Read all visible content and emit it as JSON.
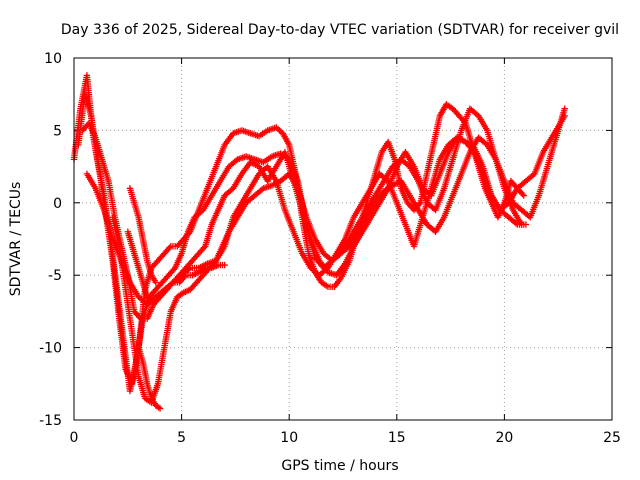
{
  "chart_data": {
    "type": "scatter",
    "title": "Day 336 of 2025, Sidereal Day-to-day VTEC variation (SDTVAR) for receiver gvil",
    "xlabel": "GPS time / hours",
    "ylabel": "SDTVAR / TECUs",
    "xlim": [
      0,
      25
    ],
    "ylim": [
      -15,
      10
    ],
    "xticks": [
      0,
      5,
      10,
      15,
      20,
      25
    ],
    "yticks": [
      -15,
      -10,
      -5,
      0,
      5,
      10
    ],
    "grid": true,
    "marker": "+",
    "color": "#ff0000",
    "series": [
      {
        "name": "track-1",
        "x": [
          0.0,
          0.3,
          0.6,
          0.9,
          1.2,
          1.5,
          1.8,
          2.1,
          2.4,
          2.7,
          3.0,
          3.3,
          3.6,
          3.9,
          4.2,
          4.5,
          4.8,
          5.1,
          5.4,
          5.8,
          6.2,
          6.6,
          7.0,
          7.4,
          7.8,
          8.2,
          8.6,
          9.0,
          9.4,
          9.7,
          10.0,
          10.3,
          10.6,
          10.9,
          11.2,
          11.5,
          11.8,
          12.1,
          12.4,
          12.8,
          13.2,
          13.6,
          14.0,
          14.3,
          14.6,
          14.9,
          15.2,
          15.5,
          15.8,
          16.1,
          16.4,
          16.7,
          17.0,
          17.3,
          17.6,
          17.9,
          18.2,
          18.5,
          18.8,
          19.1,
          19.4,
          19.7,
          20.0,
          20.3,
          20.6,
          20.9
        ],
        "y": [
          3.0,
          6.5,
          8.8,
          4.5,
          2.0,
          -1.0,
          -4.0,
          -8.0,
          -11.5,
          -12.5,
          -10.0,
          -6.0,
          -4.5,
          -4.0,
          -3.5,
          -3.0,
          -3.0,
          -2.5,
          -2.0,
          -0.5,
          1.0,
          2.5,
          4.0,
          4.8,
          5.0,
          4.8,
          4.6,
          5.0,
          5.2,
          4.8,
          4.0,
          2.0,
          -1.0,
          -3.5,
          -4.8,
          -5.5,
          -5.8,
          -5.8,
          -5.2,
          -4.0,
          -2.0,
          0.0,
          2.0,
          3.5,
          4.2,
          3.0,
          1.0,
          0.0,
          -0.5,
          0.0,
          2.0,
          4.0,
          6.0,
          6.8,
          6.5,
          6.0,
          5.5,
          4.0,
          2.5,
          1.0,
          0.0,
          -1.0,
          0.0,
          1.5,
          1.0,
          0.5
        ]
      },
      {
        "name": "track-2",
        "x": [
          0.2,
          0.5,
          0.8,
          1.1,
          1.4,
          1.7,
          2.0,
          2.3,
          2.6,
          2.9,
          3.2,
          3.5,
          3.8,
          4.1,
          4.4,
          4.7,
          5.0,
          5.3,
          5.6,
          6.0,
          6.4,
          6.8,
          7.2,
          7.6,
          8.0,
          8.4,
          8.8,
          9.2,
          9.6,
          10.0,
          10.4,
          10.8,
          11.2,
          11.6,
          12.0,
          12.4,
          12.8,
          13.2,
          13.6,
          14.0,
          14.4,
          14.8,
          15.2,
          15.6,
          16.0,
          16.4,
          16.8,
          17.2,
          17.6,
          18.0,
          18.4,
          18.8,
          19.2,
          19.6,
          20.0,
          20.4,
          20.8
        ],
        "y": [
          4.0,
          7.5,
          6.0,
          3.0,
          0.5,
          -2.5,
          -6.0,
          -9.5,
          -13.0,
          -11.0,
          -8.0,
          -6.5,
          -6.0,
          -5.5,
          -5.0,
          -4.5,
          -3.5,
          -2.0,
          -1.0,
          -0.5,
          0.5,
          1.5,
          2.5,
          3.0,
          3.2,
          3.0,
          2.8,
          3.2,
          3.4,
          3.0,
          1.5,
          -1.5,
          -3.8,
          -4.5,
          -4.0,
          -3.5,
          -2.5,
          -1.5,
          -0.5,
          0.5,
          1.5,
          2.5,
          3.0,
          2.5,
          1.5,
          0.0,
          -0.5,
          1.0,
          3.0,
          5.0,
          6.5,
          6.0,
          5.0,
          3.0,
          1.0,
          -0.5,
          -1.5
        ]
      },
      {
        "name": "track-3",
        "x": [
          0.4,
          0.7,
          1.0,
          1.3,
          1.6,
          1.9,
          2.2,
          2.5,
          2.8,
          3.1,
          3.4,
          3.7,
          4.0,
          4.3,
          4.6,
          4.9,
          5.2,
          5.5,
          5.8,
          6.1,
          6.4,
          6.7,
          7.0,
          7.4,
          7.8,
          8.2,
          8.6,
          9.0,
          9.4,
          9.8,
          10.2,
          10.6,
          11.0,
          11.4,
          11.8,
          12.2,
          12.6,
          13.0,
          13.4,
          13.8,
          14.2,
          14.6,
          15.0,
          15.4,
          15.8,
          16.2,
          16.6,
          17.0,
          17.4,
          17.8,
          18.2,
          18.6,
          19.0,
          19.4,
          19.8,
          20.2,
          20.6,
          21.0
        ],
        "y": [
          5.0,
          5.5,
          4.5,
          3.0,
          1.5,
          -1.0,
          -3.0,
          -5.0,
          -7.5,
          -8.0,
          -8.0,
          -7.0,
          -6.5,
          -6.0,
          -5.5,
          -5.0,
          -4.5,
          -4.0,
          -3.5,
          -3.0,
          -1.5,
          -0.5,
          0.5,
          1.0,
          2.0,
          2.8,
          2.5,
          1.5,
          2.5,
          3.5,
          1.5,
          -0.5,
          -2.5,
          -4.0,
          -4.8,
          -5.0,
          -4.2,
          -3.0,
          -2.0,
          -1.0,
          0.0,
          1.0,
          2.5,
          3.5,
          2.5,
          1.0,
          0.5,
          2.0,
          3.5,
          4.5,
          4.2,
          3.8,
          2.5,
          0.5,
          -0.5,
          -1.0,
          -1.5,
          -1.5
        ]
      },
      {
        "name": "track-4",
        "x": [
          0.6,
          1.0,
          1.4,
          1.8,
          2.2,
          2.6,
          3.0,
          3.4,
          3.8,
          4.2,
          4.6,
          5.0,
          5.4,
          5.8,
          6.2,
          6.6,
          7.0,
          7.4,
          7.8,
          8.2,
          8.6,
          9.0,
          9.4,
          9.8,
          10.2,
          10.6,
          11.0,
          11.4,
          11.8,
          12.2,
          12.6,
          13.0,
          13.4,
          13.8,
          14.2,
          14.6,
          15.0,
          15.4,
          15.8,
          16.2,
          16.6,
          17.0,
          17.4,
          17.8,
          18.2,
          18.6,
          19.0,
          19.4,
          19.8,
          20.2,
          20.6,
          21.0,
          21.4,
          21.8,
          22.2,
          22.6,
          22.8
        ],
        "y": [
          2.0,
          1.0,
          -0.5,
          -2.5,
          -4.0,
          -5.5,
          -6.5,
          -7.0,
          -6.5,
          -6.0,
          -5.5,
          -5.0,
          -4.5,
          -4.5,
          -4.2,
          -4.0,
          -3.0,
          -1.0,
          0.0,
          1.0,
          2.0,
          2.5,
          1.5,
          -0.5,
          -2.0,
          -3.5,
          -4.5,
          -5.0,
          -4.5,
          -3.5,
          -2.5,
          -1.0,
          0.0,
          1.0,
          2.0,
          1.5,
          0.0,
          -1.5,
          -3.0,
          -1.0,
          1.0,
          3.0,
          4.0,
          4.5,
          4.2,
          3.5,
          2.0,
          0.5,
          -0.5,
          0.0,
          1.0,
          1.5,
          2.0,
          3.5,
          4.5,
          5.5,
          6.0
        ]
      },
      {
        "name": "track-5",
        "x": [
          1.8,
          2.1,
          2.4,
          2.7,
          3.0,
          3.3,
          3.6,
          3.9,
          4.2,
          4.5,
          4.8,
          5.1,
          5.4,
          5.7,
          6.0,
          6.3,
          6.6,
          6.9,
          7.2,
          7.6,
          8.0,
          8.4,
          8.8,
          9.2,
          9.6,
          10.0,
          10.4,
          10.8,
          11.2,
          11.6,
          12.0,
          12.4,
          12.8,
          13.2,
          13.6,
          14.0,
          14.4,
          14.8,
          15.2,
          15.6,
          16.0,
          16.4,
          16.8,
          17.2,
          17.6,
          18.0,
          18.4,
          18.8,
          19.2,
          19.6,
          20.0,
          20.4,
          20.8,
          21.2,
          21.6,
          22.0,
          22.4,
          22.8
        ],
        "y": [
          -1.0,
          -3.0,
          -6.0,
          -9.0,
          -12.0,
          -13.5,
          -13.8,
          -12.5,
          -10.0,
          -7.5,
          -6.5,
          -6.2,
          -6.0,
          -5.5,
          -5.0,
          -4.5,
          -4.0,
          -3.0,
          -2.0,
          -1.0,
          0.0,
          0.5,
          1.0,
          1.2,
          1.5,
          2.0,
          1.0,
          -1.0,
          -2.5,
          -3.5,
          -4.0,
          -3.5,
          -3.0,
          -2.0,
          -1.0,
          0.0,
          0.8,
          1.2,
          1.5,
          0.5,
          -0.5,
          -1.5,
          -2.0,
          -1.0,
          0.5,
          2.0,
          3.5,
          4.5,
          4.0,
          3.0,
          1.5,
          0.0,
          -0.5,
          -1.0,
          0.5,
          2.5,
          4.5,
          6.5
        ]
      },
      {
        "name": "track-6",
        "x": [
          2.5,
          2.8,
          3.1,
          3.4,
          3.7,
          4.0,
          4.3,
          4.6,
          4.9,
          5.2,
          5.5,
          5.8,
          6.1,
          6.4,
          6.7,
          7.0
        ],
        "y": [
          -2.0,
          -3.5,
          -5.0,
          -6.5,
          -7.0,
          -6.5,
          -6.0,
          -5.5,
          -5.5,
          -5.0,
          -5.0,
          -4.8,
          -4.5,
          -4.5,
          -4.3,
          -4.3
        ]
      },
      {
        "name": "track-7",
        "x": [
          2.6,
          2.8,
          3.0,
          3.2,
          3.4,
          3.6,
          3.8
        ],
        "y": [
          1.0,
          0.0,
          -1.0,
          -2.5,
          -4.0,
          -5.0,
          -5.5
        ]
      },
      {
        "name": "track-8",
        "x": [
          3.0,
          3.2,
          3.4,
          3.6,
          3.8,
          4.0
        ],
        "y": [
          -10.0,
          -11.0,
          -12.5,
          -13.5,
          -14.0,
          -14.2
        ]
      }
    ]
  }
}
